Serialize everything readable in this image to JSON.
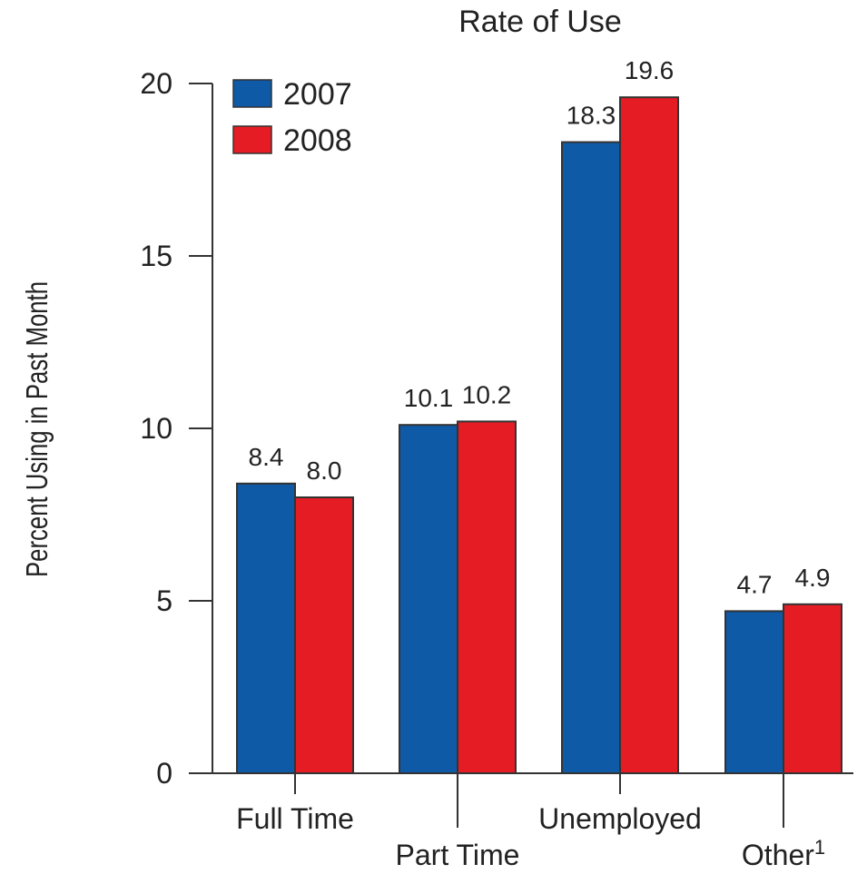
{
  "chart_data": {
    "type": "bar",
    "title": "Rate of Use",
    "ylabel": "Percent Using in Past Month",
    "xlabel": "",
    "ylim": [
      0,
      20
    ],
    "yticks": [
      "0",
      "5",
      "10",
      "15",
      "20"
    ],
    "categories": [
      "Full Time",
      "Part Time",
      "Unemployed",
      "Other"
    ],
    "category_footnotes": [
      "",
      "",
      "",
      "1"
    ],
    "series": [
      {
        "name": "2007",
        "color": "#0e5aa7",
        "values": [
          8.4,
          10.1,
          18.3,
          4.7
        ],
        "labels": [
          "8.4",
          "10.1",
          "18.3",
          "4.7"
        ]
      },
      {
        "name": "2008",
        "color": "#e51c23",
        "values": [
          8.0,
          10.2,
          19.6,
          4.9
        ],
        "labels": [
          "8.0",
          "10.2",
          "19.6",
          "4.9"
        ]
      }
    ],
    "legend_position": "top-left",
    "grid": false
  }
}
